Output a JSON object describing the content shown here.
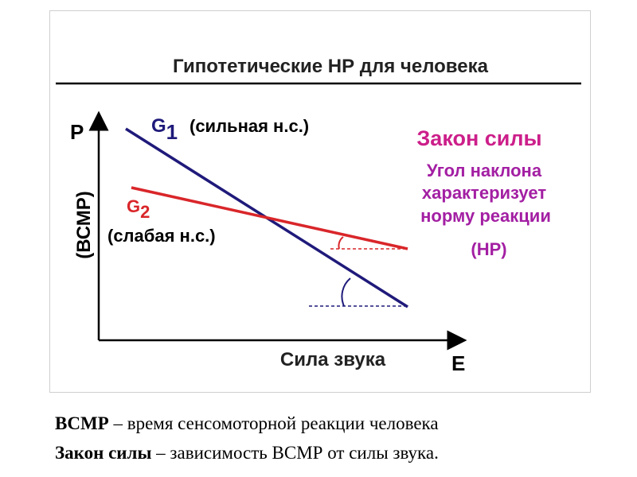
{
  "title": "Гипотетические  НР для человека",
  "axes": {
    "y_letter": "Р",
    "y_label": "(ВСМР)",
    "x_label": "Сила звука",
    "x_letter": "Е"
  },
  "lines": {
    "g1": {
      "letter": "G",
      "subscript": "1",
      "description": "(сильная н.с.)",
      "color": "#1f1a7a"
    },
    "g2": {
      "letter": "G",
      "subscript": "2",
      "description": "(слабая н.с.)",
      "color": "#d9262a"
    }
  },
  "law": {
    "heading": "Закон силы",
    "heading_color": "#cc1f8a",
    "text_lines": [
      "Угол наклона",
      "характеризует",
      "норму реакции",
      "(НР)"
    ],
    "text_color": "#a31fa3"
  },
  "captions": {
    "line1_term": "ВСМР",
    "line1_rest": " – время сенсомоторной реакции человека",
    "line2_term": "Закон силы",
    "line2_rest": " – зависимость ВСМР от силы звука."
  }
}
